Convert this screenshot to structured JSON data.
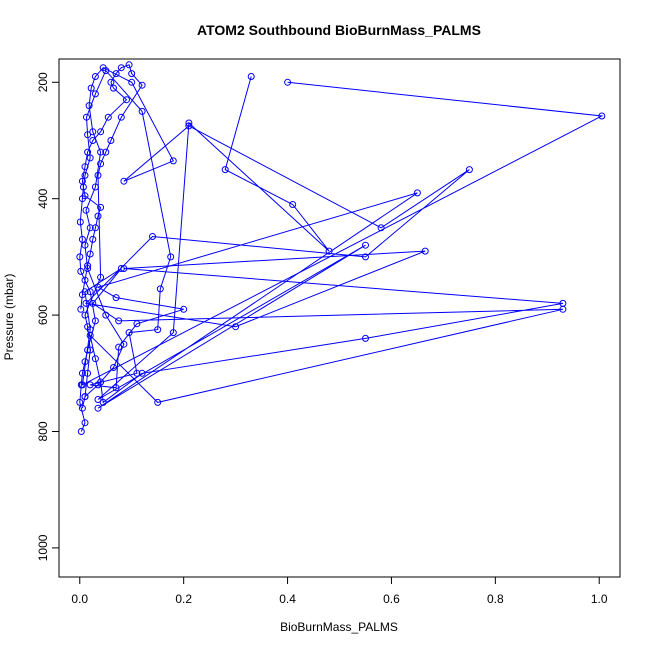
{
  "chart_data": {
    "type": "line",
    "title": "ATOM2 Southbound BioBurnMass_PALMS",
    "xlabel": "BioBurnMass_PALMS",
    "ylabel": "Pressure (mbar)",
    "xlim": [
      -0.04,
      1.04
    ],
    "ylim": [
      1050,
      160
    ],
    "y_inverted": true,
    "xticks": [
      0.0,
      0.2,
      0.4,
      0.6,
      0.8,
      1.0
    ],
    "xtick_labels": [
      "0.0",
      "0.2",
      "0.4",
      "0.6",
      "0.8",
      "1.0"
    ],
    "yticks": [
      200,
      400,
      600,
      800,
      1000
    ],
    "ytick_labels": [
      "200",
      "400",
      "600",
      "800",
      "1000"
    ],
    "grid": false,
    "series_color": "#0000ff",
    "series": [
      {
        "x": [
          0.003,
          0.01,
          0.0,
          0.003,
          0.005,
          0.01,
          0.015,
          0.03,
          0.02,
          0.002,
          0.0,
          0.005,
          0.001,
          0.005,
          0.007,
          0.01,
          0.02,
          0.015,
          0.013,
          0.03,
          0.05,
          0.12,
          0.175,
          0.155,
          0.15,
          0.095,
          0.11,
          0.02,
          0.07,
          0.075,
          0.11,
          0.2,
          0.07,
          0.035,
          0.65,
          0.035,
          0.55,
          0.035,
          0.18,
          0.21,
          0.48,
          0.41,
          0.28,
          0.33
        ],
        "y": [
          800,
          785,
          750,
          720,
          700,
          680,
          660,
          610,
          560,
          525,
          500,
          470,
          440,
          400,
          380,
          360,
          330,
          290,
          260,
          220,
          180,
          250,
          500,
          555,
          625,
          630,
          700,
          720,
          725,
          655,
          615,
          590,
          570,
          552,
          390,
          760,
          480,
          745,
          630,
          270,
          490,
          410,
          350,
          190
        ]
      },
      {
        "x": [
          0.005,
          0.01,
          0.035,
          0.065,
          0.085,
          0.05,
          0.015,
          0.01,
          0.02,
          0.012,
          0.03,
          0.04,
          0.025,
          0.018,
          0.022,
          0.03,
          0.045,
          0.1,
          0.18,
          0.085,
          0.21,
          0.58,
          0.75,
          0.55,
          0.14,
          0.012,
          0.3,
          0.665,
          0.085,
          0.93,
          0.55,
          0.12,
          0.045,
          0.04,
          0.03,
          0.02,
          0.15,
          0.93,
          0.075,
          0.025,
          0.08,
          0.01,
          0.02,
          0.005,
          1.005,
          0.4
        ],
        "y": [
          760,
          740,
          720,
          690,
          650,
          600,
          520,
          480,
          450,
          420,
          380,
          320,
          285,
          240,
          210,
          190,
          175,
          200,
          335,
          370,
          275,
          450,
          350,
          500,
          465,
          580,
          620,
          490,
          520,
          580,
          640,
          700,
          750,
          715,
          675,
          635,
          750,
          590,
          610,
          580,
          520,
          560,
          625,
          720,
          258,
          200
        ]
      },
      {
        "x": [
          0.002,
          0.005,
          0.01,
          0.015,
          0.02,
          0.025,
          0.03,
          0.035,
          0.04,
          0.01,
          0.005,
          0.01,
          0.015,
          0.025,
          0.04,
          0.055,
          0.09,
          0.065,
          0.06,
          0.07,
          0.08,
          0.095,
          0.1,
          0.12,
          0.08,
          0.06,
          0.05,
          0.04,
          0.035,
          0.04,
          0.01,
          0.015,
          0.02,
          0.015,
          0.01
        ],
        "y": [
          590,
          565,
          540,
          515,
          495,
          470,
          450,
          430,
          415,
          395,
          370,
          345,
          320,
          300,
          285,
          260,
          230,
          210,
          200,
          185,
          175,
          170,
          185,
          205,
          260,
          300,
          320,
          340,
          360,
          535,
          600,
          620,
          660,
          700,
          740
        ]
      }
    ]
  }
}
